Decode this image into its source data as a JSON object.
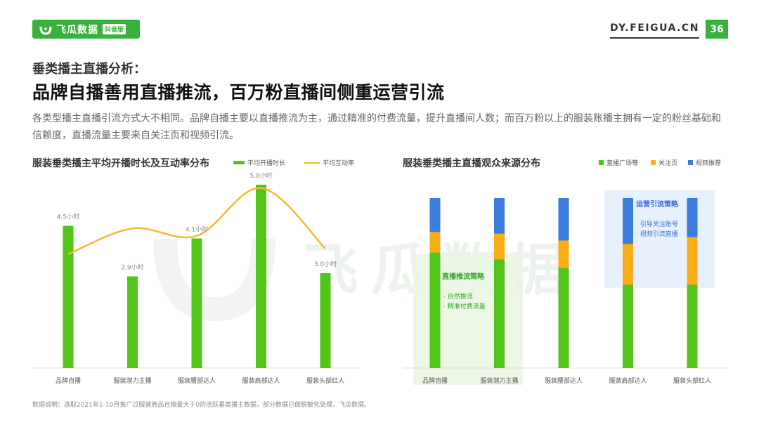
{
  "header": {
    "logo_text": "飞瓜数据",
    "logo_badge": "抖音版",
    "site": "DY.FEIGUA.CN",
    "page_number": "36"
  },
  "watermark": "飞瓜数据",
  "subtitle": "垂类播主直播分析：",
  "title": "品牌自播善用直播推流，百万粉直播间侧重运营引流",
  "description": "各类型播主直播引流方式大不相同。品牌自播主要以直播推流为主，通过精准的付费流量，提升直播间人数；而百万粉以上的服装账播主拥有一定的粉丝基础和信赖度，直播流量主要来自关注页和视频引流。",
  "chart_data": [
    {
      "type": "bar",
      "title": "服装垂类播主平均开播时长及互动率分布",
      "categories": [
        "品牌自播",
        "服装潜力主播",
        "服装腰部达人",
        "服装肩部达人",
        "服装头部红人"
      ],
      "series": [
        {
          "name": "平均开播时长",
          "type": "bar",
          "values": [
            4.5,
            2.9,
            4.1,
            5.8,
            3.0
          ],
          "color": "#52c41a"
        },
        {
          "name": "平均互动率",
          "type": "line",
          "values": [
            0.62,
            0.76,
            0.72,
            0.98,
            0.65
          ],
          "color": "#f5b82e"
        }
      ],
      "data_labels": [
        "4.5小时",
        "2.9小时",
        "4.1小时",
        "5.8小时",
        "3.0小时"
      ],
      "ylim": [
        0,
        7
      ],
      "legend": "top-right"
    },
    {
      "type": "bar",
      "stacked": true,
      "title": "服装垂类播主直播观众来源分布",
      "categories": [
        "品牌自播",
        "服装潜力主播",
        "服装腰部达人",
        "服装肩部达人",
        "服装头部红人"
      ],
      "series": [
        {
          "name": "直播广场等",
          "values": [
            68,
            64,
            59,
            49,
            49
          ],
          "color": "#52c41a"
        },
        {
          "name": "关注页",
          "values": [
            12,
            15,
            16,
            24,
            28
          ],
          "color": "#faad14"
        },
        {
          "name": "视频推荐",
          "values": [
            20,
            21,
            25,
            27,
            23
          ],
          "color": "#3b7ddd"
        }
      ],
      "ylim": [
        0,
        100
      ],
      "legend": "top-right",
      "annotations": [
        {
          "title": "直播推流策略",
          "items": [
            "· 自然推流",
            "· 精准付费流量"
          ]
        },
        {
          "title": "运营引流策略",
          "items": [
            "· 引导关注账号",
            "· 视频引流直播"
          ]
        }
      ]
    }
  ],
  "footnote": "数据说明：选取2021年1-10月推广过服装商品且销量大于0的活跃垂类播主数据，部分数据已做脱敏化处理，飞瓜数据。"
}
